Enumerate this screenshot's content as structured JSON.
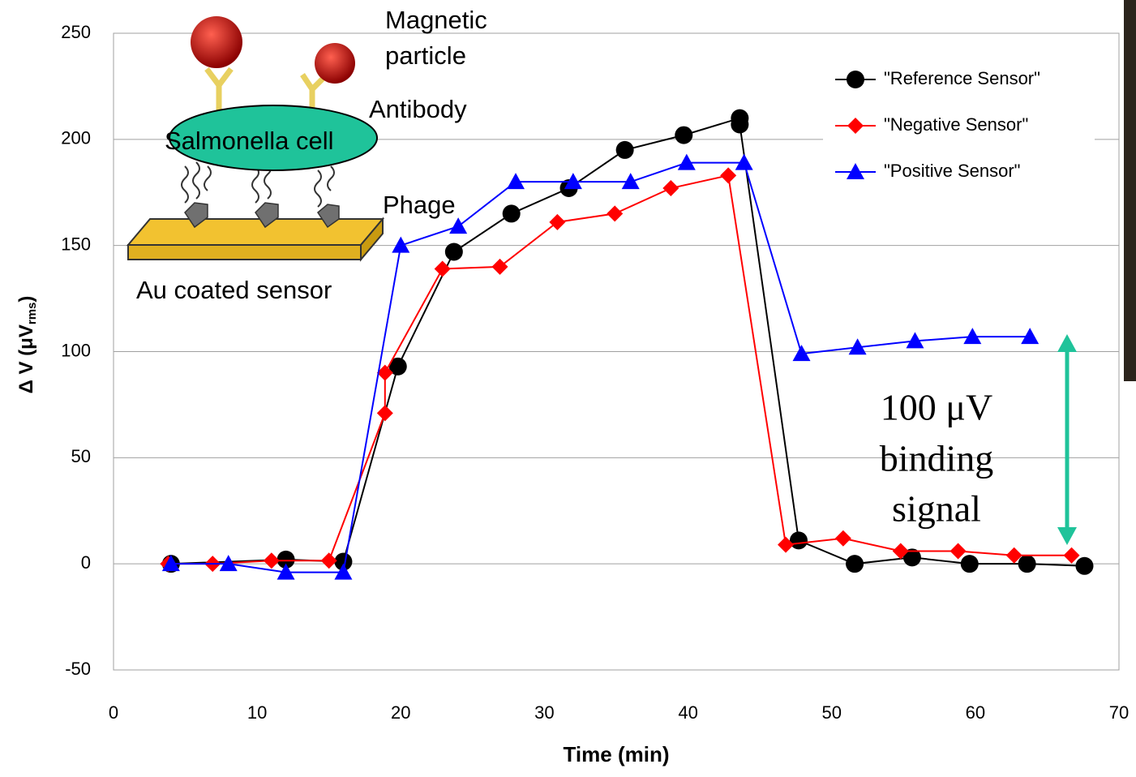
{
  "chart_data": {
    "type": "line",
    "x_label": "Time (min)",
    "y_label": "Δ V (μV",
    "y_label_sub": "rms",
    "y_label_end": ")",
    "xlim": [
      0,
      70
    ],
    "xticks": [
      0,
      10,
      20,
      30,
      40,
      50,
      60,
      70
    ],
    "ylim": [
      -50,
      250
    ],
    "yticks": [
      -50,
      0,
      50,
      100,
      150,
      200,
      250
    ],
    "grid": true,
    "legend": "upper right",
    "series": [
      {
        "name": "\"Reference Sensor\"",
        "color": "#000000",
        "marker": "circle",
        "x": [
          4,
          12,
          16,
          19.8,
          23.7,
          27.7,
          31.7,
          35.6,
          39.7,
          43.6,
          43.6,
          47.7,
          51.6,
          55.6,
          59.6,
          63.6,
          67.6
        ],
        "values": [
          0,
          2,
          1,
          93,
          147,
          165,
          177,
          195,
          202,
          210,
          207,
          11,
          0,
          3,
          0,
          0,
          -1
        ]
      },
      {
        "name": "\"Negative Sensor\"",
        "color": "#ff0000",
        "marker": "diamond",
        "x": [
          3.8,
          6.9,
          11,
          15,
          18.9,
          18.9,
          22.9,
          26.9,
          30.9,
          34.9,
          38.8,
          42.8,
          46.8,
          50.8,
          54.8,
          58.8,
          62.7,
          66.7
        ],
        "values": [
          0,
          0,
          1.5,
          1.5,
          71,
          90,
          139,
          140,
          161,
          165,
          177,
          183,
          9,
          12,
          6,
          6,
          4,
          4
        ]
      },
      {
        "name": "\"Positive Sensor\"",
        "color": "#0000ff",
        "marker": "triangle",
        "x": [
          4,
          8,
          12,
          16,
          20,
          24,
          28,
          32,
          36,
          39.9,
          43.9,
          47.9,
          51.8,
          55.8,
          59.8,
          63.8
        ],
        "values": [
          0,
          0,
          -4,
          -4,
          150,
          159,
          180,
          180,
          180,
          189,
          189,
          99,
          102,
          105,
          107,
          107
        ]
      }
    ],
    "annotations": {
      "magnetic": [
        "Magnetic",
        "particle"
      ],
      "antibody": "Antibody",
      "cell": "Salmonella cell",
      "phage": "Phage",
      "sensor": "Au coated sensor",
      "signal": [
        "100 μV",
        "binding",
        "signal"
      ]
    }
  }
}
